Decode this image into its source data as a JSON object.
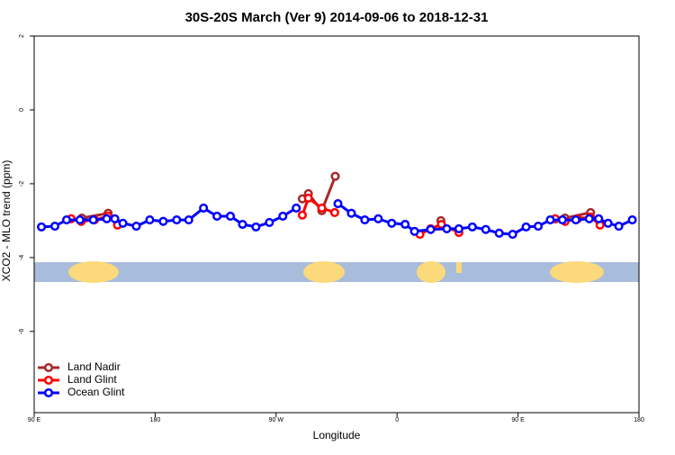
{
  "chart_data": {
    "type": "line",
    "title": "30S-20S March (Ver 9)   2014-09-06 to 2018-12-31",
    "x_label": "Longitude",
    "y_label": "XCO2 - MLO trend (ppm)",
    "xlim": [
      90,
      540
    ],
    "xticks": [
      {
        "value": 90,
        "label": "90 E"
      },
      {
        "value": 180,
        "label": "180"
      },
      {
        "value": 270,
        "label": "90 W"
      },
      {
        "value": 360,
        "label": "0"
      },
      {
        "value": 450,
        "label": "90 E"
      },
      {
        "value": 540,
        "label": "180"
      }
    ],
    "ylim": [
      -8.2,
      2
    ],
    "yticks": [
      2,
      0,
      -2,
      -4,
      -6
    ],
    "legend": "bottom-left",
    "series": [
      {
        "name": "Land Nadir",
        "color": "#a52a2a",
        "x": [
          125.5,
          145,
          null,
          289.5,
          294,
          304,
          314,
          null,
          392.6,
          null,
          485,
          504
        ],
        "values": [
          -2.93,
          -2.8,
          null,
          -2.41,
          -2.27,
          -2.73,
          -1.8,
          null,
          -3.0,
          null,
          -2.93,
          -2.78
        ]
      },
      {
        "name": "Land Glint",
        "color": "#ff0000",
        "x": [
          117.5,
          125,
          134.9,
          145,
          152,
          null,
          289.5,
          294,
          304,
          313.6,
          null,
          377,
          385,
          393,
          406,
          null,
          477.7,
          485,
          494.4,
          503.8,
          511
        ],
        "values": [
          -2.95,
          -3.02,
          -2.98,
          -2.88,
          -3.12,
          null,
          -2.85,
          -2.39,
          -2.66,
          -2.78,
          null,
          -3.37,
          -3.22,
          -3.1,
          -3.32,
          null,
          -2.95,
          -3.02,
          -2.95,
          -2.9,
          -3.12
        ]
      },
      {
        "name": "Ocean Glint",
        "color": "#0000ff",
        "x": [
          95.4,
          105.4,
          114.1,
          124,
          134,
          144,
          150,
          156,
          166,
          176,
          186,
          196,
          205,
          216,
          226,
          236,
          245,
          255,
          265,
          275,
          285,
          null,
          316,
          326,
          336,
          346,
          356,
          366,
          373,
          385,
          397,
          406,
          416,
          426,
          436,
          446,
          456,
          465,
          474,
          483,
          493,
          503,
          510,
          517,
          525,
          535
        ],
        "values": [
          -3.17,
          -3.15,
          -2.98,
          -2.98,
          -2.98,
          -2.95,
          -2.95,
          -3.07,
          -3.15,
          -2.98,
          -3.02,
          -2.98,
          -2.98,
          -2.66,
          -2.88,
          -2.88,
          -3.1,
          -3.17,
          -3.05,
          -2.88,
          -2.66,
          null,
          -2.54,
          -2.8,
          -2.98,
          -2.95,
          -3.07,
          -3.1,
          -3.29,
          -3.24,
          -3.22,
          -3.22,
          -3.17,
          -3.24,
          -3.34,
          -3.37,
          -3.17,
          -3.15,
          -2.98,
          -2.98,
          -2.98,
          -2.95,
          -2.95,
          -3.07,
          -3.15,
          -2.98
        ]
      }
    ]
  }
}
